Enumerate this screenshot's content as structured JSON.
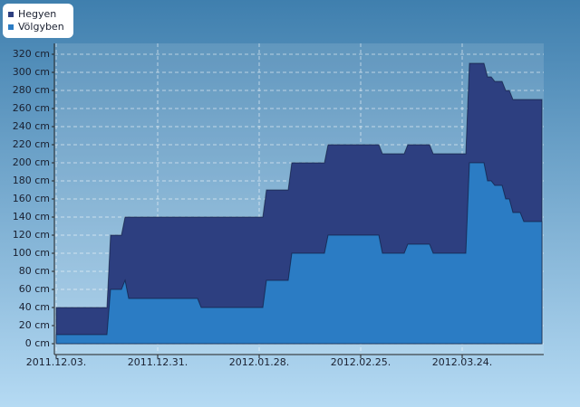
{
  "chart_data": {
    "type": "area",
    "legend_position": "top-left",
    "grid": true,
    "x": [
      "2011-12-03",
      "2011-12-17",
      "2011-12-18",
      "2011-12-21",
      "2011-12-22",
      "2011-12-23",
      "2012-01-11",
      "2012-01-12",
      "2012-01-29",
      "2012-01-30",
      "2012-02-05",
      "2012-02-06",
      "2012-02-15",
      "2012-02-16",
      "2012-03-01",
      "2012-03-02",
      "2012-03-08",
      "2012-03-09",
      "2012-03-15",
      "2012-03-16",
      "2012-03-25",
      "2012-03-26",
      "2012-03-30",
      "2012-03-31",
      "2012-04-01",
      "2012-04-02",
      "2012-04-04",
      "2012-04-05",
      "2012-04-06",
      "2012-04-07",
      "2012-04-09",
      "2012-04-10",
      "2012-04-15"
    ],
    "series": [
      {
        "name": "Hegyen",
        "color": "#2d3f80",
        "values": [
          40,
          40,
          120,
          120,
          140,
          140,
          140,
          140,
          140,
          170,
          170,
          200,
          200,
          220,
          220,
          210,
          210,
          220,
          220,
          210,
          210,
          310,
          310,
          295,
          295,
          290,
          290,
          280,
          280,
          270,
          270,
          270,
          270
        ]
      },
      {
        "name": "Völgyben",
        "color": "#2b7cc4",
        "values": [
          10,
          10,
          60,
          60,
          70,
          50,
          50,
          40,
          40,
          70,
          70,
          100,
          100,
          120,
          120,
          100,
          100,
          110,
          110,
          100,
          100,
          200,
          200,
          180,
          180,
          175,
          175,
          160,
          160,
          145,
          145,
          135,
          135
        ]
      }
    ],
    "xlim": [
      "2011-12-03",
      "2012-04-15"
    ],
    "xticks": [
      {
        "value": "2011-12-03",
        "label": "2011.12.03."
      },
      {
        "value": "2011-12-31",
        "label": "2011.12.31."
      },
      {
        "value": "2012-01-28",
        "label": "2012.01.28."
      },
      {
        "value": "2012-02-25",
        "label": "2012.02.25."
      },
      {
        "value": "2012-03-24",
        "label": "2012.03.24."
      }
    ],
    "ylim": [
      -12,
      332
    ],
    "yticks": [
      {
        "value": 0,
        "label": "0 cm"
      },
      {
        "value": 20,
        "label": "20 cm"
      },
      {
        "value": 40,
        "label": "40 cm"
      },
      {
        "value": 60,
        "label": "60 cm"
      },
      {
        "value": 80,
        "label": "80 cm"
      },
      {
        "value": 100,
        "label": "100 cm"
      },
      {
        "value": 120,
        "label": "120 cm"
      },
      {
        "value": 140,
        "label": "140 cm"
      },
      {
        "value": 160,
        "label": "160 cm"
      },
      {
        "value": 180,
        "label": "180 cm"
      },
      {
        "value": 200,
        "label": "200 cm"
      },
      {
        "value": 220,
        "label": "220 cm"
      },
      {
        "value": 240,
        "label": "240 cm"
      },
      {
        "value": 260,
        "label": "260 cm"
      },
      {
        "value": 280,
        "label": "280 cm"
      },
      {
        "value": 300,
        "label": "300 cm"
      },
      {
        "value": 320,
        "label": "320 cm"
      }
    ]
  }
}
